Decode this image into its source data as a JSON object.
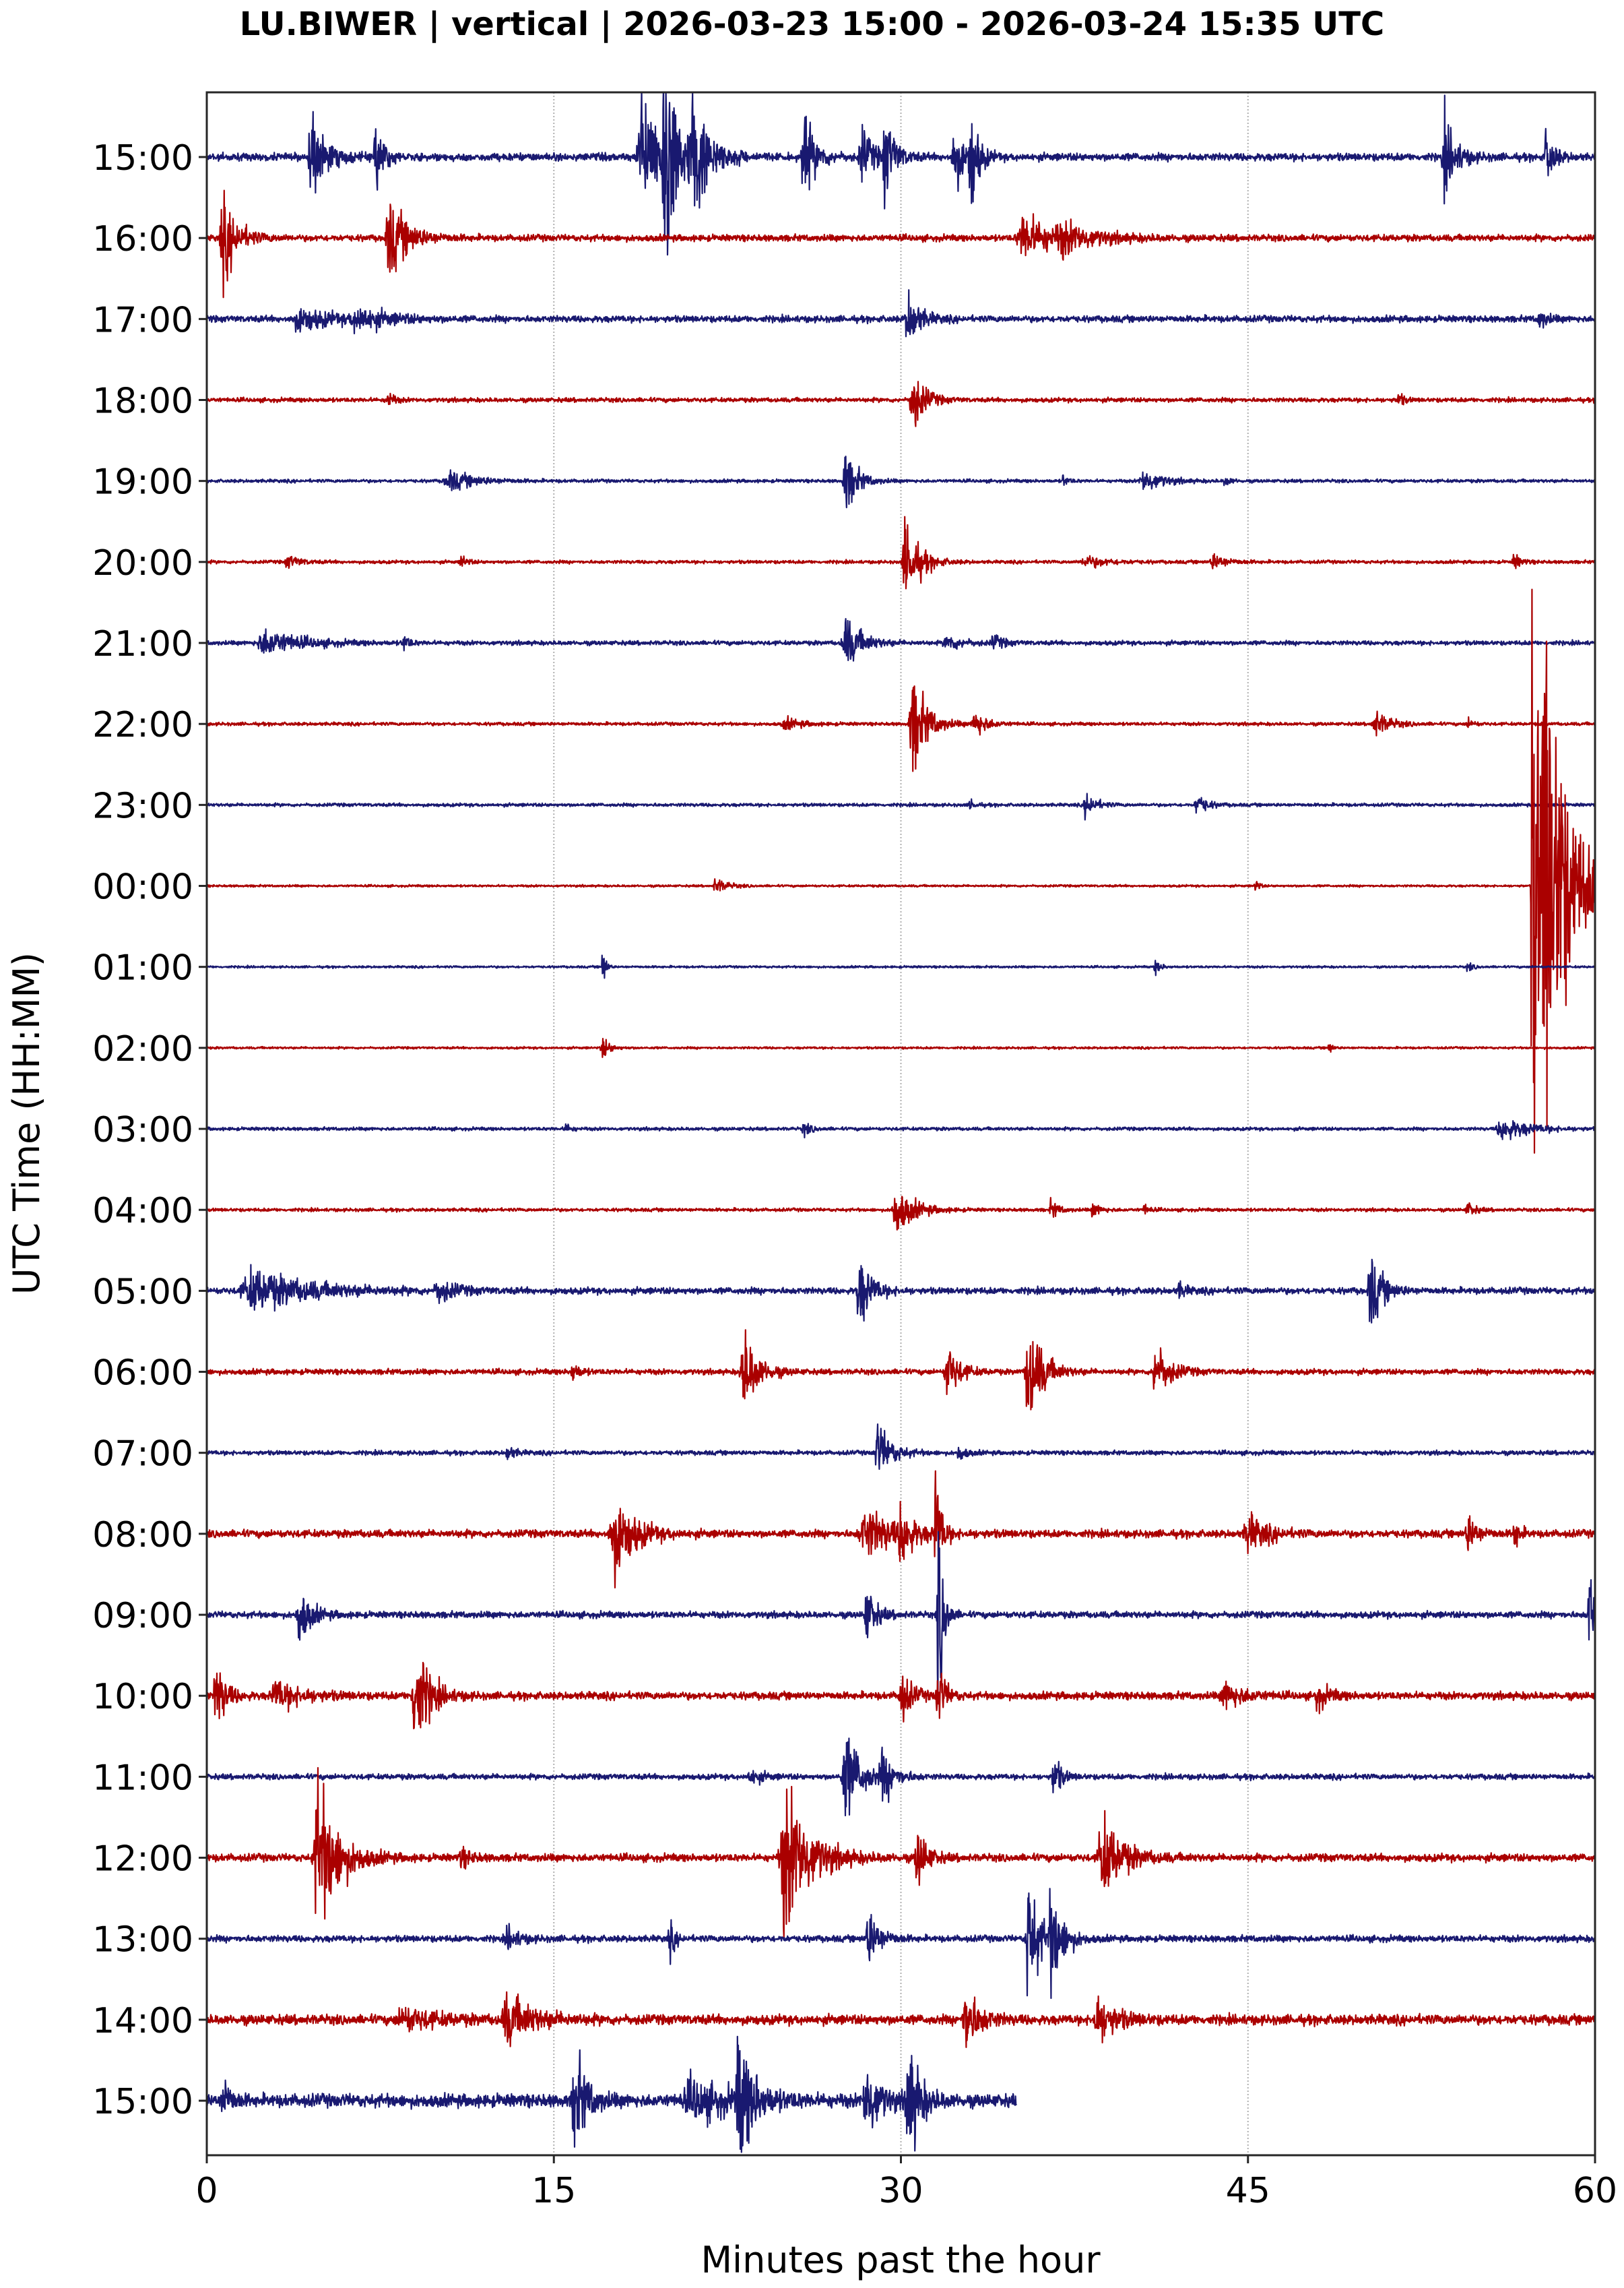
{
  "chart_data": {
    "type": "line",
    "subtype": "helicorder",
    "title": "LU.BIWER | vertical | 2026-03-23 15:00 - 2026-03-24 15:35 UTC",
    "station": "LU.BIWER",
    "component": "vertical",
    "time_range": {
      "start": "2026-03-23 15:00",
      "end": "2026-03-24 15:35",
      "timezone": "UTC"
    },
    "xlabel": "Minutes past the hour",
    "ylabel": "UTC Time (HH:MM)",
    "xlim": [
      0,
      60
    ],
    "xticks": [
      0,
      15,
      30,
      45,
      60
    ],
    "grid": {
      "x": true,
      "style": "dotted",
      "color": "#b0b0b0"
    },
    "colors": [
      "#191970",
      "#aa0000"
    ],
    "rows": [
      {
        "label": "15:00",
        "color": "#191970",
        "end_min": 60,
        "noise": 7,
        "events": [
          [
            4.5,
            45,
            0.6
          ],
          [
            7.3,
            45,
            0.3
          ],
          [
            18.8,
            70,
            0.9
          ],
          [
            19.8,
            160,
            0.4
          ],
          [
            21,
            70,
            0.7
          ],
          [
            25.8,
            45,
            0.5
          ],
          [
            28.3,
            30,
            0.5
          ],
          [
            29.3,
            45,
            0.4
          ],
          [
            32.3,
            40,
            0.4
          ],
          [
            33,
            60,
            0.3
          ],
          [
            53.5,
            40,
            0.5
          ],
          [
            57.9,
            30,
            0.3
          ]
        ]
      },
      {
        "label": "16:00",
        "color": "#aa0000",
        "end_min": 60,
        "noise": 6,
        "events": [
          [
            0.7,
            45,
            0.6
          ],
          [
            7.9,
            40,
            0.8
          ],
          [
            35.3,
            25,
            1.3
          ],
          [
            37,
            12,
            1.5
          ]
        ]
      },
      {
        "label": "17:00",
        "color": "#191970",
        "end_min": 60,
        "noise": 6,
        "events": [
          [
            4,
            12,
            1.5
          ],
          [
            6.5,
            12,
            1.3
          ],
          [
            30.3,
            30,
            0.5
          ],
          [
            57.6,
            10,
            0.3
          ]
        ]
      },
      {
        "label": "18:00",
        "color": "#aa0000",
        "end_min": 60,
        "noise": 4,
        "events": [
          [
            7.8,
            12,
            0.2
          ],
          [
            30.5,
            35,
            0.5
          ],
          [
            51.5,
            8,
            0.2
          ]
        ]
      },
      {
        "label": "19:00",
        "color": "#191970",
        "end_min": 60,
        "noise": 3,
        "events": [
          [
            10.5,
            10,
            1.2
          ],
          [
            27.6,
            35,
            0.5
          ],
          [
            40.5,
            12,
            0.8
          ],
          [
            37,
            6,
            0.2
          ],
          [
            44,
            6,
            0.2
          ]
        ]
      },
      {
        "label": "20:00",
        "color": "#aa0000",
        "end_min": 60,
        "noise": 3,
        "events": [
          [
            3.5,
            7,
            0.5
          ],
          [
            11,
            8,
            0.2
          ],
          [
            30.2,
            45,
            0.6
          ],
          [
            38,
            6,
            1
          ],
          [
            43.5,
            8,
            0.6
          ],
          [
            56.5,
            8,
            0.3
          ]
        ]
      },
      {
        "label": "21:00",
        "color": "#191970",
        "end_min": 60,
        "noise": 4,
        "events": [
          [
            2.5,
            14,
            1.6
          ],
          [
            8.5,
            10,
            0.2
          ],
          [
            27.6,
            28,
            0.7
          ],
          [
            32,
            8,
            0.7
          ],
          [
            34,
            8,
            0.4
          ]
        ]
      },
      {
        "label": "22:00",
        "color": "#aa0000",
        "end_min": 60,
        "noise": 3,
        "events": [
          [
            25,
            6,
            0.7
          ],
          [
            30.5,
            55,
            0.6
          ],
          [
            33.2,
            15,
            0.5
          ],
          [
            50.5,
            14,
            0.6
          ],
          [
            54.5,
            6,
            0.2
          ]
        ]
      },
      {
        "label": "23:00",
        "color": "#191970",
        "end_min": 60,
        "noise": 3,
        "events": [
          [
            33,
            6,
            0.2
          ],
          [
            38,
            14,
            0.4
          ],
          [
            42.8,
            12,
            0.4
          ]
        ]
      },
      {
        "label": "00:00",
        "color": "#aa0000",
        "end_min": 60,
        "noise": 2,
        "events": [
          [
            22,
            8,
            0.5
          ],
          [
            45.3,
            12,
            0.1
          ],
          [
            57.3,
            400,
            0.3
          ],
          [
            57.8,
            300,
            0.5
          ],
          [
            58.5,
            80,
            1.6
          ]
        ]
      },
      {
        "label": "01:00",
        "color": "#191970",
        "end_min": 60,
        "noise": 2,
        "events": [
          [
            17.1,
            28,
            0.1
          ],
          [
            41,
            8,
            0.2
          ],
          [
            54.5,
            5,
            0.2
          ]
        ]
      },
      {
        "label": "02:00",
        "color": "#aa0000",
        "end_min": 60,
        "noise": 2,
        "events": [
          [
            17.1,
            12,
            0.3
          ],
          [
            48.5,
            8,
            0.1
          ]
        ]
      },
      {
        "label": "03:00",
        "color": "#191970",
        "end_min": 60,
        "noise": 3,
        "events": [
          [
            15.5,
            6,
            0.2
          ],
          [
            25.8,
            7,
            0.3
          ],
          [
            56,
            12,
            1.2
          ]
        ]
      },
      {
        "label": "04:00",
        "color": "#aa0000",
        "end_min": 60,
        "noise": 3,
        "events": [
          [
            29.8,
            25,
            0.8
          ],
          [
            36.5,
            10,
            0.3
          ],
          [
            38.3,
            8,
            0.3
          ],
          [
            40.5,
            6,
            0.2
          ],
          [
            54.5,
            8,
            0.3
          ]
        ]
      },
      {
        "label": "05:00",
        "color": "#191970",
        "end_min": 60,
        "noise": 6,
        "events": [
          [
            2,
            22,
            2.5
          ],
          [
            10,
            12,
            0.7
          ],
          [
            28.2,
            40,
            0.5
          ],
          [
            50.3,
            40,
            0.5
          ],
          [
            42,
            8,
            0.3
          ]
        ]
      },
      {
        "label": "06:00",
        "color": "#aa0000",
        "end_min": 60,
        "noise": 5,
        "events": [
          [
            23.2,
            45,
            0.6
          ],
          [
            32,
            30,
            0.5
          ],
          [
            35.5,
            60,
            0.6
          ],
          [
            41,
            30,
            0.6
          ],
          [
            15.8,
            10,
            0.3
          ]
        ]
      },
      {
        "label": "07:00",
        "color": "#191970",
        "end_min": 60,
        "noise": 4,
        "events": [
          [
            29,
            30,
            0.6
          ],
          [
            13,
            8,
            0.3
          ],
          [
            32.5,
            8,
            0.3
          ]
        ]
      },
      {
        "label": "08:00",
        "color": "#aa0000",
        "end_min": 60,
        "noise": 7,
        "events": [
          [
            17.6,
            45,
            0.9
          ],
          [
            28.5,
            25,
            1.5
          ],
          [
            30,
            30,
            0.4
          ],
          [
            31.5,
            70,
            0.2
          ],
          [
            45,
            20,
            0.8
          ],
          [
            54.5,
            20,
            0.4
          ],
          [
            56.5,
            20,
            0.2
          ]
        ]
      },
      {
        "label": "09:00",
        "color": "#191970",
        "end_min": 60,
        "noise": 6,
        "events": [
          [
            4,
            30,
            0.5
          ],
          [
            28.5,
            30,
            0.4
          ],
          [
            31.6,
            120,
            0.2
          ],
          [
            59.8,
            50,
            0.6
          ]
        ]
      },
      {
        "label": "10:00",
        "color": "#aa0000",
        "end_min": 60,
        "noise": 7,
        "events": [
          [
            0.4,
            40,
            0.4
          ],
          [
            3,
            15,
            1.2
          ],
          [
            9,
            60,
            0.6
          ],
          [
            30,
            30,
            0.4
          ],
          [
            31.6,
            35,
            0.3
          ],
          [
            44,
            15,
            0.8
          ],
          [
            48,
            14,
            0.5
          ]
        ]
      },
      {
        "label": "11:00",
        "color": "#191970",
        "end_min": 60,
        "noise": 5,
        "events": [
          [
            27.6,
            50,
            0.7
          ],
          [
            29.2,
            25,
            0.5
          ],
          [
            36.6,
            25,
            0.3
          ],
          [
            23.5,
            8,
            0.5
          ]
        ]
      },
      {
        "label": "12:00",
        "color": "#aa0000",
        "end_min": 60,
        "noise": 7,
        "events": [
          [
            4.8,
            85,
            0.9
          ],
          [
            25,
            80,
            1.1
          ],
          [
            30.7,
            35,
            0.4
          ],
          [
            38.7,
            45,
            0.9
          ],
          [
            11,
            10,
            0.4
          ]
        ]
      },
      {
        "label": "13:00",
        "color": "#191970",
        "end_min": 60,
        "noise": 6,
        "events": [
          [
            28.6,
            30,
            0.5
          ],
          [
            35.5,
            70,
            0.5
          ],
          [
            36.5,
            50,
            0.5
          ],
          [
            20,
            20,
            0.2
          ],
          [
            13,
            12,
            0.5
          ]
        ]
      },
      {
        "label": "14:00",
        "color": "#aa0000",
        "end_min": 60,
        "noise": 9,
        "events": [
          [
            13,
            25,
            1.2
          ],
          [
            32.8,
            35,
            0.6
          ],
          [
            38.5,
            25,
            0.8
          ],
          [
            8.5,
            12,
            1.5
          ]
        ]
      },
      {
        "label": "15:00",
        "color": "#191970",
        "end_min": 35,
        "noise": 12,
        "events": [
          [
            0.7,
            25,
            0.3
          ],
          [
            15.9,
            55,
            0.5
          ],
          [
            23,
            65,
            0.6
          ],
          [
            28.5,
            40,
            0.6
          ],
          [
            30.3,
            65,
            0.5
          ],
          [
            21,
            20,
            2
          ]
        ]
      }
    ]
  }
}
